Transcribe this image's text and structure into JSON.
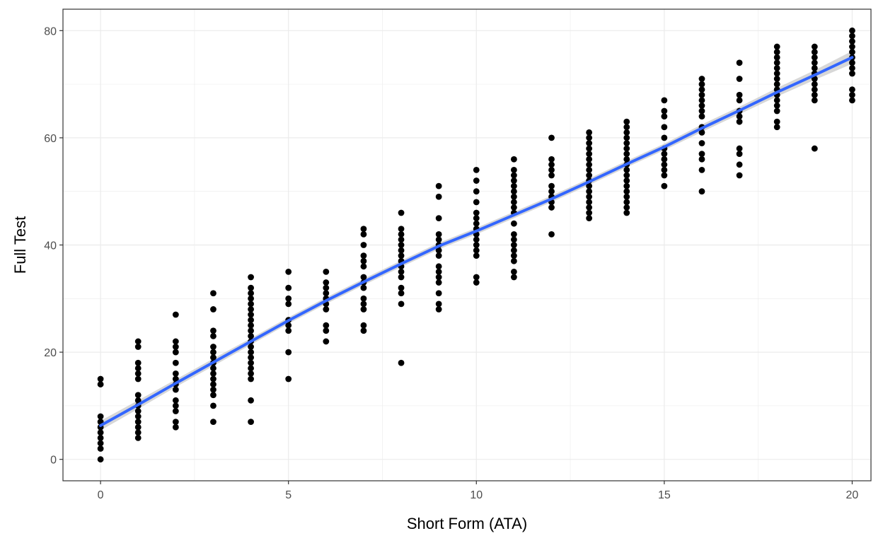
{
  "chart_data": {
    "type": "scatter",
    "title": "",
    "xlabel": "Short Form (ATA)",
    "ylabel": "Full Test",
    "xlim": [
      -1,
      20.5
    ],
    "ylim": [
      -4,
      84
    ],
    "x_ticks": [
      0,
      5,
      10,
      15,
      20
    ],
    "y_ticks": [
      0,
      20,
      40,
      60,
      80
    ],
    "grid": true,
    "legend": "none",
    "colors": {
      "points": "#000000",
      "smooth_line": "#3366FF",
      "confidence_band": "#bdbdbd",
      "panel_border": "#333333",
      "grid": "#ebebeb"
    },
    "points_by_x": [
      {
        "x": 0,
        "y": [
          0,
          2,
          3,
          4,
          5,
          6,
          7,
          8,
          14,
          15
        ]
      },
      {
        "x": 1,
        "y": [
          4,
          5,
          6,
          7,
          8,
          9,
          10,
          11,
          12,
          15,
          16,
          17,
          18,
          21,
          22
        ]
      },
      {
        "x": 2,
        "y": [
          6,
          7,
          9,
          10,
          11,
          13,
          14,
          15,
          16,
          18,
          20,
          21,
          22,
          27
        ]
      },
      {
        "x": 3,
        "y": [
          7,
          10,
          12,
          13,
          14,
          15,
          16,
          17,
          18,
          19,
          20,
          21,
          23,
          24,
          28,
          31
        ]
      },
      {
        "x": 4,
        "y": [
          7,
          11,
          15,
          16,
          17,
          18,
          19,
          20,
          21,
          22,
          23,
          24,
          25,
          26,
          27,
          28,
          29,
          30,
          31,
          32,
          34
        ]
      },
      {
        "x": 5,
        "y": [
          15,
          20,
          24,
          25,
          26,
          29,
          30,
          32,
          35
        ]
      },
      {
        "x": 6,
        "y": [
          22,
          24,
          25,
          28,
          29,
          30,
          31,
          32,
          33,
          35
        ]
      },
      {
        "x": 7,
        "y": [
          24,
          25,
          28,
          29,
          30,
          32,
          33,
          34,
          36,
          37,
          38,
          40,
          42,
          43
        ]
      },
      {
        "x": 8,
        "y": [
          18,
          29,
          31,
          32,
          34,
          35,
          36,
          37,
          38,
          39,
          40,
          41,
          42,
          43,
          46
        ]
      },
      {
        "x": 9,
        "y": [
          28,
          29,
          31,
          33,
          34,
          35,
          36,
          38,
          39,
          40,
          41,
          42,
          45,
          49,
          51
        ]
      },
      {
        "x": 10,
        "y": [
          33,
          34,
          38,
          39,
          40,
          41,
          42,
          43,
          44,
          45,
          46,
          48,
          50,
          52,
          54
        ]
      },
      {
        "x": 11,
        "y": [
          34,
          35,
          37,
          38,
          39,
          40,
          41,
          42,
          44,
          46,
          47,
          48,
          49,
          50,
          51,
          52,
          53,
          54,
          56
        ]
      },
      {
        "x": 12,
        "y": [
          42,
          47,
          48,
          49,
          50,
          51,
          53,
          54,
          55,
          56,
          60
        ]
      },
      {
        "x": 13,
        "y": [
          45,
          46,
          47,
          48,
          49,
          50,
          51,
          52,
          53,
          54,
          55,
          56,
          57,
          58,
          59,
          60,
          61
        ]
      },
      {
        "x": 14,
        "y": [
          46,
          47,
          48,
          49,
          50,
          51,
          52,
          53,
          54,
          55,
          56,
          57,
          58,
          59,
          60,
          61,
          62,
          63
        ]
      },
      {
        "x": 15,
        "y": [
          51,
          53,
          54,
          55,
          56,
          57,
          58,
          60,
          62,
          64,
          65,
          67
        ]
      },
      {
        "x": 16,
        "y": [
          50,
          54,
          56,
          57,
          59,
          61,
          62,
          64,
          65,
          66,
          67,
          68,
          69,
          70,
          71
        ]
      },
      {
        "x": 17,
        "y": [
          53,
          55,
          57,
          58,
          63,
          64,
          65,
          67,
          68,
          71,
          74
        ]
      },
      {
        "x": 18,
        "y": [
          62,
          63,
          65,
          66,
          67,
          68,
          69,
          70,
          71,
          72,
          73,
          74,
          75,
          76,
          77
        ]
      },
      {
        "x": 19,
        "y": [
          58,
          67,
          68,
          69,
          70,
          71,
          72,
          73,
          74,
          75,
          76,
          77
        ]
      },
      {
        "x": 20,
        "y": [
          67,
          68,
          69,
          72,
          73,
          74,
          75,
          76,
          77,
          78,
          79,
          80
        ]
      }
    ],
    "smooth_line": {
      "x": [
        0,
        1,
        2,
        3,
        4,
        5,
        6,
        7,
        8,
        9,
        10,
        11,
        12,
        13,
        14,
        15,
        16,
        17,
        18,
        19,
        20
      ],
      "y": [
        6.3,
        10.2,
        14.2,
        18.1,
        22.0,
        25.9,
        29.6,
        33.1,
        36.5,
        39.8,
        42.6,
        45.6,
        48.6,
        51.8,
        55.1,
        58.3,
        61.8,
        65.1,
        68.5,
        71.7,
        75.0
      ],
      "se": [
        0.9,
        0.8,
        0.7,
        0.7,
        0.6,
        0.6,
        0.6,
        0.6,
        0.6,
        0.6,
        0.6,
        0.6,
        0.6,
        0.6,
        0.6,
        0.6,
        0.7,
        0.7,
        0.8,
        0.9,
        1.2
      ]
    }
  }
}
